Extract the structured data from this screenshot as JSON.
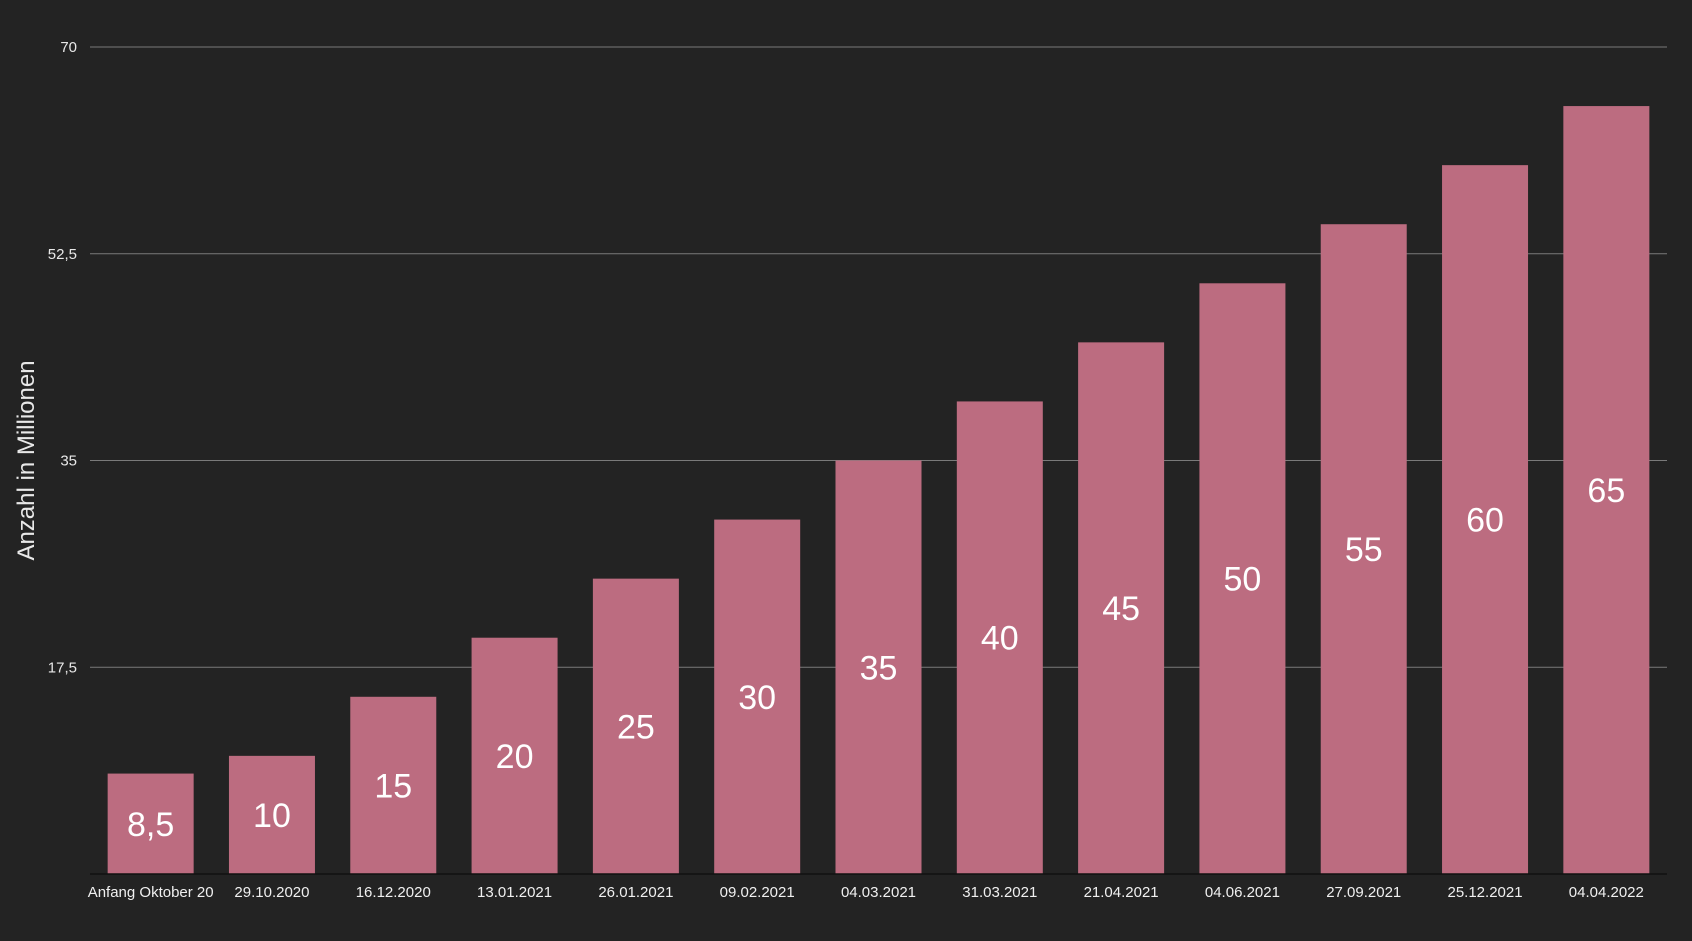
{
  "chart_data": {
    "type": "bar",
    "categories": [
      "Anfang Oktober 20",
      "29.10.2020",
      "16.12.2020",
      "13.01.2021",
      "26.01.2021",
      "09.02.2021",
      "04.03.2021",
      "31.03.2021",
      "21.04.2021",
      "04.06.2021",
      "27.09.2021",
      "25.12.2021",
      "04.04.2022"
    ],
    "values": [
      8.5,
      10,
      15,
      20,
      25,
      30,
      35,
      40,
      45,
      50,
      55,
      60,
      65
    ],
    "data_labels": [
      "8,5",
      "10",
      "15",
      "20",
      "25",
      "30",
      "35",
      "40",
      "45",
      "50",
      "55",
      "60",
      "65"
    ],
    "title": "",
    "xlabel": "",
    "ylabel": "Anzahl in Millionen",
    "ylim": [
      0,
      70
    ],
    "yticks": [
      17.5,
      35,
      52.5,
      70
    ],
    "ytick_labels": [
      "17,5",
      "35",
      "52,5",
      "70"
    ],
    "grid": true,
    "legend": "none",
    "colors": {
      "background": "#232323",
      "bar": "#bc6c80",
      "grid": "#7a7a7a",
      "text": "#ffffff"
    }
  }
}
